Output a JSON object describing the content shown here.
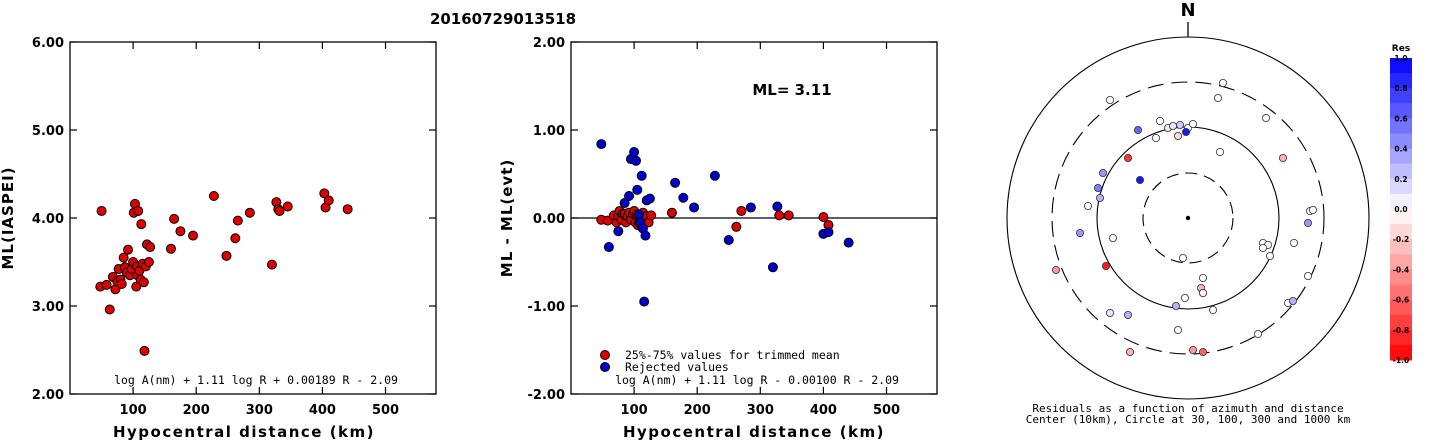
{
  "figure_title": "20160729013518",
  "chart_data": [
    {
      "type": "scatter",
      "id": "ml-vs-distance",
      "xlabel": "Hypocentral distance (km)",
      "ylabel": "ML(IASPEI)",
      "xlim": [
        0,
        580
      ],
      "ylim": [
        2.0,
        6.0
      ],
      "xticks": [
        "100",
        "200",
        "300",
        "400",
        "500"
      ],
      "yticks": [
        "2.00",
        "3.00",
        "4.00",
        "5.00",
        "6.00"
      ],
      "formula": "log A(nm) + 1.11 log R + 0.00189 R - 2.09",
      "point_color": "#dd0000",
      "points": [
        [
          50,
          4.08
        ],
        [
          48,
          3.22
        ],
        [
          58,
          3.24
        ],
        [
          63,
          2.96
        ],
        [
          68,
          3.33
        ],
        [
          72,
          3.19
        ],
        [
          75,
          3.28
        ],
        [
          77,
          3.42
        ],
        [
          80,
          3.3
        ],
        [
          82,
          3.25
        ],
        [
          85,
          3.55
        ],
        [
          87,
          3.44
        ],
        [
          90,
          3.38
        ],
        [
          92,
          3.64
        ],
        [
          95,
          3.35
        ],
        [
          98,
          3.42
        ],
        [
          100,
          3.5
        ],
        [
          101,
          4.06
        ],
        [
          103,
          4.16
        ],
        [
          105,
          3.22
        ],
        [
          106,
          3.45
        ],
        [
          107,
          3.35
        ],
        [
          108,
          4.08
        ],
        [
          110,
          3.4
        ],
        [
          112,
          3.3
        ],
        [
          113,
          3.93
        ],
        [
          115,
          3.48
        ],
        [
          117,
          3.27
        ],
        [
          118,
          2.49
        ],
        [
          120,
          3.45
        ],
        [
          122,
          3.7
        ],
        [
          125,
          3.5
        ],
        [
          127,
          3.67
        ],
        [
          160,
          3.65
        ],
        [
          165,
          3.99
        ],
        [
          175,
          3.85
        ],
        [
          195,
          3.8
        ],
        [
          228,
          4.25
        ],
        [
          248,
          3.57
        ],
        [
          262,
          3.77
        ],
        [
          266,
          3.97
        ],
        [
          285,
          4.06
        ],
        [
          320,
          3.47
        ],
        [
          327,
          4.18
        ],
        [
          330,
          4.1
        ],
        [
          332,
          4.08
        ],
        [
          345,
          4.13
        ],
        [
          403,
          4.28
        ],
        [
          405,
          4.12
        ],
        [
          410,
          4.2
        ],
        [
          440,
          4.1
        ]
      ]
    },
    {
      "type": "scatter",
      "id": "residual-vs-distance",
      "xlabel": "Hypocentral distance (km)",
      "ylabel": "ML - ML(evt)",
      "xlim": [
        0,
        580
      ],
      "ylim": [
        -2.0,
        2.0
      ],
      "xticks": [
        "100",
        "200",
        "300",
        "400",
        "500"
      ],
      "yticks": [
        "-2.00",
        "-1.00",
        "0.00",
        "1.00",
        "2.00"
      ],
      "annotation": "ML= 3.11",
      "formula": "log A(nm) + 1.11 log R - 0.00100 R - 2.09",
      "series": [
        {
          "name": "25%-75% values for trimmed mean",
          "color": "#dd0000",
          "points": [
            [
              48,
              -0.02
            ],
            [
              58,
              -0.03
            ],
            [
              68,
              0.03
            ],
            [
              72,
              -0.05
            ],
            [
              75,
              0.02
            ],
            [
              77,
              0.08
            ],
            [
              80,
              -0.02
            ],
            [
              82,
              0.05
            ],
            [
              85,
              0.05
            ],
            [
              87,
              -0.05
            ],
            [
              90,
              0.02
            ],
            [
              92,
              0.06
            ],
            [
              95,
              -0.02
            ],
            [
              98,
              0.05
            ],
            [
              100,
              0.08
            ],
            [
              102,
              -0.05
            ],
            [
              104,
              0.02
            ],
            [
              105,
              0.04
            ],
            [
              106,
              -0.08
            ],
            [
              108,
              -0.05
            ],
            [
              110,
              0.03
            ],
            [
              112,
              -0.1
            ],
            [
              114,
              0.06
            ],
            [
              118,
              -0.03
            ],
            [
              120,
              0.02
            ],
            [
              123,
              -0.05
            ],
            [
              127,
              0.03
            ],
            [
              160,
              0.06
            ],
            [
              262,
              -0.1
            ],
            [
              270,
              0.08
            ],
            [
              330,
              0.03
            ],
            [
              345,
              0.03
            ],
            [
              400,
              0.01
            ],
            [
              408,
              -0.08
            ]
          ]
        },
        {
          "name": "Rejected values",
          "color": "#0000cc",
          "points": [
            [
              48,
              0.84
            ],
            [
              60,
              -0.33
            ],
            [
              75,
              -0.15
            ],
            [
              85,
              0.17
            ],
            [
              92,
              0.25
            ],
            [
              95,
              0.67
            ],
            [
              100,
              0.75
            ],
            [
              103,
              0.65
            ],
            [
              105,
              0.32
            ],
            [
              108,
              0.04
            ],
            [
              110,
              -0.05
            ],
            [
              112,
              0.48
            ],
            [
              114,
              -0.12
            ],
            [
              116,
              -0.95
            ],
            [
              118,
              -0.2
            ],
            [
              120,
              0.2
            ],
            [
              125,
              0.22
            ],
            [
              165,
              0.4
            ],
            [
              178,
              0.23
            ],
            [
              195,
              0.12
            ],
            [
              228,
              0.48
            ],
            [
              250,
              -0.25
            ],
            [
              285,
              0.12
            ],
            [
              320,
              -0.56
            ],
            [
              327,
              0.13
            ],
            [
              400,
              -0.18
            ],
            [
              408,
              -0.16
            ],
            [
              440,
              -0.28
            ]
          ]
        }
      ]
    },
    {
      "type": "polar-scatter",
      "id": "azimuth-residuals",
      "north_label": "N",
      "caption_line1": "Residuals as a function of azimuth and distance",
      "caption_line2": "Center (10km), Circle at 30, 100, 300 and 1000 km",
      "colorbar_title": "Res",
      "colorbar_ticks": [
        "1.0",
        "0.8",
        "0.6",
        "0.4",
        "0.2",
        "0.0",
        "-0.2",
        "-0.4",
        "-0.6",
        "-0.8",
        "-1.0"
      ],
      "colorbar_range": [
        -1.0,
        1.0
      ],
      "positive_color": "#0000ff",
      "negative_color": "#ff0000",
      "stations": [
        [
          -78,
          -118,
          0.0
        ],
        [
          -50,
          -88,
          0.6
        ],
        [
          -28,
          -97,
          0.0
        ],
        [
          -20,
          -90,
          -0.1
        ],
        [
          -15,
          -92,
          0.1
        ],
        [
          -8,
          -93,
          0.2
        ],
        [
          0,
          -90,
          0.0
        ],
        [
          5,
          -94,
          0.0
        ],
        [
          -2,
          -86,
          0.9
        ],
        [
          -10,
          -82,
          -0.15
        ],
        [
          -32,
          -80,
          0.0
        ],
        [
          -60,
          -60,
          -0.8
        ],
        [
          -48,
          -38,
          0.9
        ],
        [
          -85,
          -45,
          0.4
        ],
        [
          -90,
          -30,
          0.5
        ],
        [
          -88,
          -20,
          0.3
        ],
        [
          -100,
          -12,
          0.0
        ],
        [
          -108,
          15,
          0.4
        ],
        [
          -75,
          20,
          0.0
        ],
        [
          -132,
          52,
          -0.4
        ],
        [
          -82,
          48,
          -0.9
        ],
        [
          -78,
          95,
          0.1
        ],
        [
          -60,
          97,
          0.3
        ],
        [
          30,
          -120,
          0.0
        ],
        [
          35,
          -135,
          0.0
        ],
        [
          78,
          -100,
          0.0
        ],
        [
          32,
          -66,
          0.0
        ],
        [
          95,
          -60,
          -0.3
        ],
        [
          122,
          -7,
          0.0
        ],
        [
          125,
          -8,
          0.0
        ],
        [
          120,
          5,
          0.4
        ],
        [
          75,
          25,
          0.0
        ],
        [
          80,
          27,
          0.0
        ],
        [
          75,
          30,
          0.0
        ],
        [
          82,
          38,
          0.0
        ],
        [
          106,
          25,
          0.0
        ],
        [
          120,
          58,
          0.0
        ],
        [
          100,
          85,
          0.0
        ],
        [
          105,
          83,
          0.3
        ],
        [
          70,
          116,
          0.0
        ],
        [
          -5,
          40,
          0.0
        ],
        [
          15,
          60,
          0.0
        ],
        [
          13,
          70,
          -0.3
        ],
        [
          15,
          75,
          -0.3
        ],
        [
          -3,
          80,
          0.0
        ],
        [
          15,
          75,
          0.0
        ],
        [
          25,
          92,
          0.0
        ],
        [
          -12,
          88,
          0.3
        ],
        [
          -10,
          112,
          0.0
        ],
        [
          5,
          132,
          -0.4
        ],
        [
          15,
          134,
          -0.6
        ],
        [
          -58,
          134,
          -0.3
        ]
      ]
    }
  ]
}
